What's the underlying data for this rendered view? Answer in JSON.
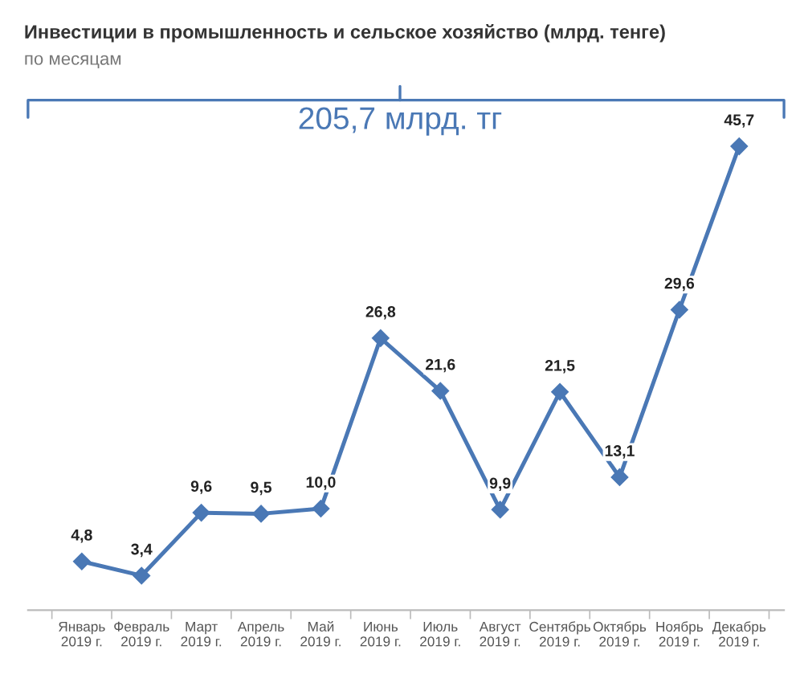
{
  "chart_data": {
    "type": "line",
    "title": "Инвестиции в промышленность и сельское хозяйство (млрд. тенге)",
    "subtitle": "по месяцам",
    "categories": [
      "Январь\n2019 г.",
      "Февраль\n2019 г.",
      "Март\n2019 г.",
      "Апрель\n2019 г.",
      "Май\n2019 г.",
      "Июнь\n2019 г.",
      "Июль\n2019 г.",
      "Август\n2019 г.",
      "Сентябрь\n2019 г.",
      "Октябрь\n2019 г.",
      "Ноябрь\n2019 г.",
      "Декабрь\n2019 г."
    ],
    "series": [
      {
        "color": "#4a78b5",
        "values": [
          4.8,
          3.4,
          9.6,
          9.5,
          10.0,
          26.8,
          21.6,
          9.9,
          21.5,
          13.1,
          29.6,
          45.7
        ],
        "value_labels": [
          "4,8",
          "3,4",
          "9,6",
          "9,5",
          "10,0",
          "26,8",
          "21,6",
          "9,9",
          "21,5",
          "13,1",
          "29,6",
          "45,7"
        ]
      }
    ],
    "annotations": [
      "205,7 млрд. тг"
    ],
    "marker": "diamond",
    "line_style": "solid",
    "grid": false,
    "legend": false,
    "tick_labels": "x"
  }
}
